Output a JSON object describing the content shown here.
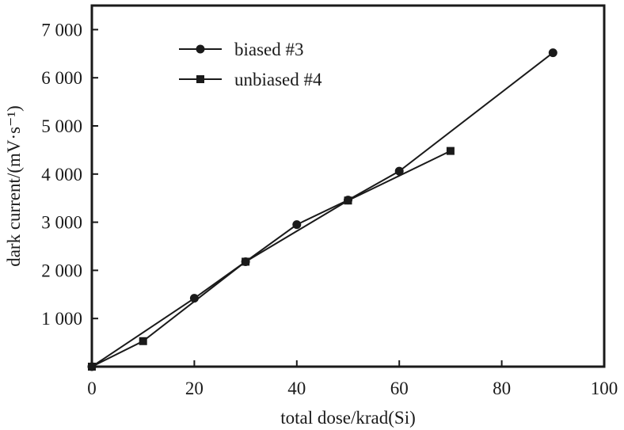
{
  "chart_data": {
    "type": "line",
    "xlabel": "total dose/krad(Si)",
    "ylabel": "dark current/(mV·s⁻¹)",
    "xlim": [
      0,
      100
    ],
    "ylim": [
      0,
      7500
    ],
    "x_ticks": [
      0,
      20,
      40,
      60,
      80,
      100
    ],
    "x_tick_labels": [
      "0",
      "20",
      "40",
      "60",
      "80",
      "100"
    ],
    "y_ticks": [
      1000,
      2000,
      3000,
      4000,
      5000,
      6000,
      7000
    ],
    "y_tick_labels": [
      "1 000",
      "2 000",
      "3 000",
      "4 000",
      "5 000",
      "6 000",
      "7 000"
    ],
    "grid": false,
    "legend_position": "top-left",
    "series": [
      {
        "name": "biased #3",
        "marker": "circle",
        "color": "#1a1a1a",
        "x": [
          0,
          20,
          30,
          40,
          50,
          60,
          90
        ],
        "y": [
          0,
          1420,
          2180,
          2950,
          3460,
          4060,
          6520
        ]
      },
      {
        "name": "unbiased #4",
        "marker": "square",
        "color": "#1a1a1a",
        "x": [
          0,
          10,
          30,
          50,
          70
        ],
        "y": [
          0,
          530,
          2180,
          3450,
          4480
        ]
      }
    ]
  }
}
